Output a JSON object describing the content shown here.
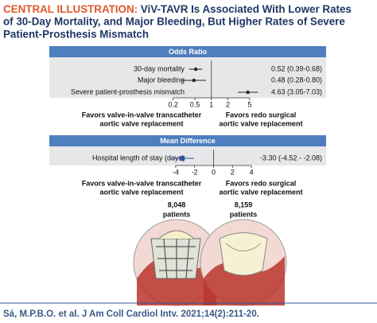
{
  "header": {
    "label": "CENTRAL ILLUSTRATION:",
    "title_lines": [
      "ViV-TAVR Is Associated With Lower Rates",
      "of 30-Day Mortality, and Major Bleeding, But Higher Rates of Severe",
      "Patient-Prosthesis Mismatch"
    ]
  },
  "chart_data": [
    {
      "type": "forest",
      "title": "Odds Ratio",
      "categories": [
        "30-day mortality",
        "Major bleeding",
        "Severe patient-prosthesis mismatch"
      ],
      "values": [
        0.52,
        0.48,
        4.63
      ],
      "lower": [
        0.39,
        0.28,
        3.05
      ],
      "upper": [
        0.68,
        0.8,
        7.03
      ],
      "value_labels": [
        "0.52 (0.39-0.68)",
        "0.48 (0.28-0.80)",
        "4.63 (3.05-7.03)"
      ],
      "log_scale": true,
      "xlim": [
        0.15,
        8
      ],
      "xticks": [
        0.2,
        0.5,
        1,
        2,
        5
      ],
      "reference_line": 1,
      "color": "#222222",
      "favors_left": [
        "Favors valve-in-valve transcatheter",
        "aortic valve replacement"
      ],
      "favors_right": [
        "Favors redo surgical",
        "aortic valve replacement"
      ]
    },
    {
      "type": "forest",
      "title": "Mean Difference",
      "categories": [
        "Hospital length of stay (days)"
      ],
      "values": [
        -3.3
      ],
      "lower": [
        -4.52
      ],
      "upper": [
        -2.08
      ],
      "value_labels": [
        "-3.30 (-4.52 - -2.08)"
      ],
      "log_scale": false,
      "xlim": [
        -5,
        5
      ],
      "xticks": [
        -4,
        -2,
        0,
        2,
        4
      ],
      "reference_line": 0,
      "color": "#2f5597",
      "favors_left": [
        "Favors valve-in-valve transcatheter",
        "aortic valve replacement"
      ],
      "favors_right": [
        "Favors redo surgical",
        "aortic valve replacement"
      ]
    }
  ],
  "groups": [
    {
      "count": "8,048",
      "unit": "patients"
    },
    {
      "count": "8,159",
      "unit": "patients"
    }
  ],
  "footer": "Sá, M.P.B.O. et al. J Am Coll Cardiol Intv. 2021;14(2):211-20."
}
